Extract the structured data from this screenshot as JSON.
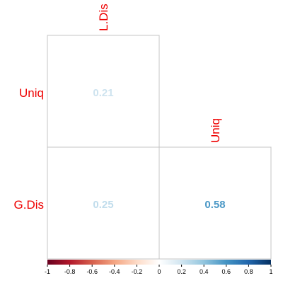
{
  "chart_data": {
    "type": "heatmap",
    "column_labels": [
      "L.Dis",
      "Uniq"
    ],
    "row_labels": [
      "Uniq",
      "G.Dis"
    ],
    "cells": [
      {
        "row": "Uniq",
        "col": "L.Dis",
        "value": 0.21,
        "label": "0.21"
      },
      {
        "row": "G.Dis",
        "col": "L.Dis",
        "value": 0.25,
        "label": "0.25"
      },
      {
        "row": "G.Dis",
        "col": "Uniq",
        "value": 0.58,
        "label": "0.58"
      }
    ],
    "colorbar": {
      "range": [
        -1,
        1
      ],
      "tick_labels": [
        "-1",
        "-0.8",
        "-0.6",
        "-0.4",
        "-0.2",
        "0",
        "0.2",
        "0.4",
        "0.6",
        "0.8",
        "1"
      ],
      "colors": [
        "#67001f",
        "#b2182b",
        "#d6604d",
        "#f4a582",
        "#fddbc7",
        "#ffffff",
        "#d1e5f0",
        "#92c5de",
        "#4393c3",
        "#2166ac",
        "#053061"
      ]
    },
    "label_color": "#ee0000",
    "grid_color": "#c4c4c4"
  }
}
